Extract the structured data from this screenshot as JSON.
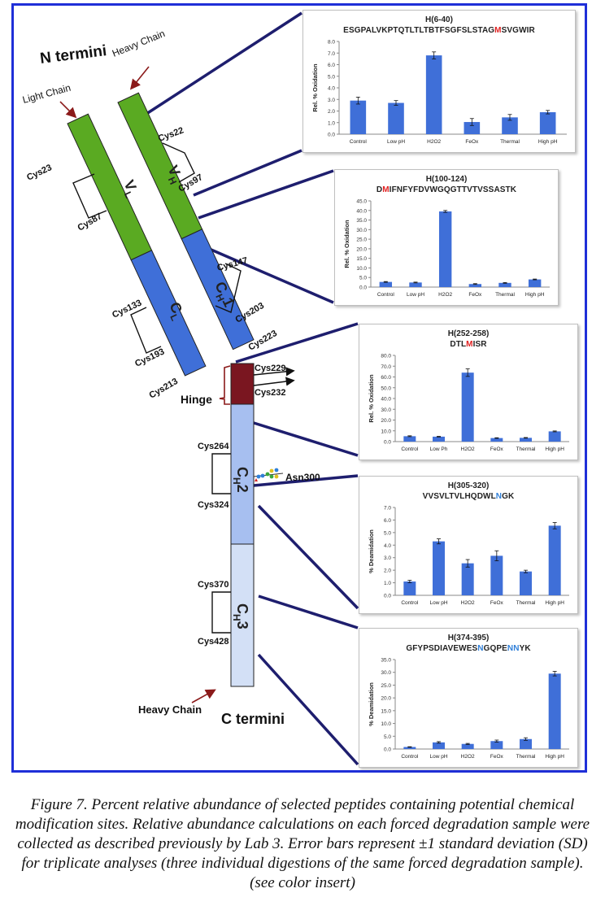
{
  "diagram": {
    "n_termini": "N termini",
    "c_termini": "C termini",
    "heavy_chain_top": "Heavy Chain",
    "light_chain": "Light Chain",
    "heavy_chain_bottom": "Heavy Chain",
    "hinge": "Hinge",
    "asn300": "Asn300",
    "cys": {
      "c22": "Cys22",
      "c97": "Cys97",
      "c23": "Cys23",
      "c87": "Cys87",
      "c147": "Cys147",
      "c203": "Cys203",
      "c133": "Cys133",
      "c193": "Cys193",
      "c223": "Cys223",
      "c213": "Cys213",
      "c229": "Cys229",
      "c232": "Cys232",
      "c264": "Cys264",
      "c324": "Cys324",
      "c370": "Cys370",
      "c428": "Cys428"
    },
    "domains": {
      "vh": "V",
      "vh_sub": "H",
      "vl": "V",
      "vl_sub": "L",
      "ch1": "C",
      "ch1_sub": "H",
      "ch1_num": "1",
      "cl": "C",
      "cl_sub": "L",
      "ch2": "C",
      "ch2_sub": "H",
      "ch2_num": "2",
      "ch3": "C",
      "ch3_sub": "H",
      "ch3_num": "3"
    },
    "colors": {
      "variable": "#5aaa22",
      "constant": "#3f6fd8",
      "hinge": "#7a1620",
      "ch2": "#a7bff0",
      "ch3": "#d3e0f6",
      "connector": "#1e1e6e",
      "arrow": "#8b1a1a",
      "bar": "#3f6fd8"
    }
  },
  "chart_data": [
    {
      "type": "bar",
      "title": "H(6-40)",
      "sequence": "ESGPALVKPTQTLTLTBTFSGFSLSTAGMSVGWIR",
      "sequence_marks": [
        {
          "index": 28,
          "color": "red"
        }
      ],
      "ylabel": "Rel. % Oxidation",
      "categories": [
        "Control",
        "Low pH",
        "H2O2",
        "FeOx",
        "Thermal",
        "High pH"
      ],
      "values": [
        2.9,
        2.7,
        6.8,
        1.05,
        1.45,
        1.9
      ],
      "errors": [
        0.3,
        0.2,
        0.3,
        0.3,
        0.25,
        0.15
      ],
      "ylim": [
        0,
        8
      ],
      "ticks": [
        "0.0",
        "1.0",
        "2.0",
        "3.0",
        "4.0",
        "5.0",
        "6.0",
        "7.0",
        "8.0"
      ]
    },
    {
      "type": "bar",
      "title": "H(100-124)",
      "sequence": "DMIFNFYFDVWGQGTTVTVSSASTK",
      "sequence_marks": [
        {
          "index": 1,
          "color": "red"
        }
      ],
      "ylabel": "Rel. % Oxidation",
      "categories": [
        "Control",
        "Low pH",
        "H2O2",
        "FeOx",
        "Thermal",
        "High pH"
      ],
      "values": [
        2.7,
        2.4,
        39.5,
        1.6,
        2.2,
        4.0
      ],
      "errors": [
        0.2,
        0.2,
        0.5,
        0.2,
        0.2,
        0.2
      ],
      "ylim": [
        0,
        45
      ],
      "ticks": [
        "0.0",
        "5.0",
        "10.0",
        "15.0",
        "20.0",
        "25.0",
        "30.0",
        "35.0",
        "40.0",
        "45.0"
      ]
    },
    {
      "type": "bar",
      "title": "H(252-258)",
      "sequence": "DTLMISR",
      "sequence_marks": [
        {
          "index": 3,
          "color": "red"
        }
      ],
      "ylabel": "Rel. % Oxidation",
      "categories": [
        "Control",
        "Low Ph",
        "H2O2",
        "FeOx",
        "Thermal",
        "High pH"
      ],
      "values": [
        5.0,
        4.6,
        64.0,
        3.3,
        3.5,
        9.5
      ],
      "errors": [
        0.4,
        0.3,
        3.5,
        0.3,
        0.3,
        0.4
      ],
      "ylim": [
        0,
        80
      ],
      "ticks": [
        "0.0",
        "10.0",
        "20.0",
        "30.0",
        "40.0",
        "50.0",
        "60.0",
        "70.0",
        "80.0"
      ]
    },
    {
      "type": "bar",
      "title": "H(305-320)",
      "sequence": "VVSVLTVLHQDWLNGK",
      "sequence_marks": [
        {
          "index": 13,
          "color": "blue"
        }
      ],
      "ylabel": "% Deamidation",
      "categories": [
        "Control",
        "Low pH",
        "H2O2",
        "FeOx",
        "Thermal",
        "High pH"
      ],
      "values": [
        1.1,
        4.3,
        2.55,
        3.15,
        1.9,
        5.55
      ],
      "errors": [
        0.1,
        0.2,
        0.3,
        0.4,
        0.1,
        0.25
      ],
      "ylim": [
        0,
        7
      ],
      "ticks": [
        "0.0",
        "1.0",
        "2.0",
        "3.0",
        "4.0",
        "5.0",
        "6.0",
        "7.0"
      ]
    },
    {
      "type": "bar",
      "title": "H(374-395)",
      "sequence": "GFYPSDIAVEWESNGQPENNYK",
      "sequence_marks": [
        {
          "index": 13,
          "color": "blue"
        },
        {
          "index": 18,
          "color": "blue"
        },
        {
          "index": 19,
          "color": "blue"
        }
      ],
      "ylabel": "% Deamidation",
      "categories": [
        "Control",
        "Low pH",
        "H2O2",
        "FeOx",
        "Thermal",
        "High pH"
      ],
      "values": [
        0.8,
        2.6,
        2.0,
        3.1,
        3.9,
        29.5
      ],
      "errors": [
        0.1,
        0.3,
        0.2,
        0.4,
        0.5,
        0.9
      ],
      "ylim": [
        0,
        35
      ],
      "ticks": [
        "0.0",
        "5.0",
        "10.0",
        "15.0",
        "20.0",
        "25.0",
        "30.0",
        "35.0"
      ]
    }
  ],
  "caption": "Figure 7. Percent relative abundance of selected peptides containing potential chemical modification sites. Relative abundance calculations on each forced degradation sample were collected as described previously by Lab 3. Error bars represent ±1 standard deviation (SD) for triplicate analyses (three individual digestions of the same forced degradation sample). (see color insert)"
}
